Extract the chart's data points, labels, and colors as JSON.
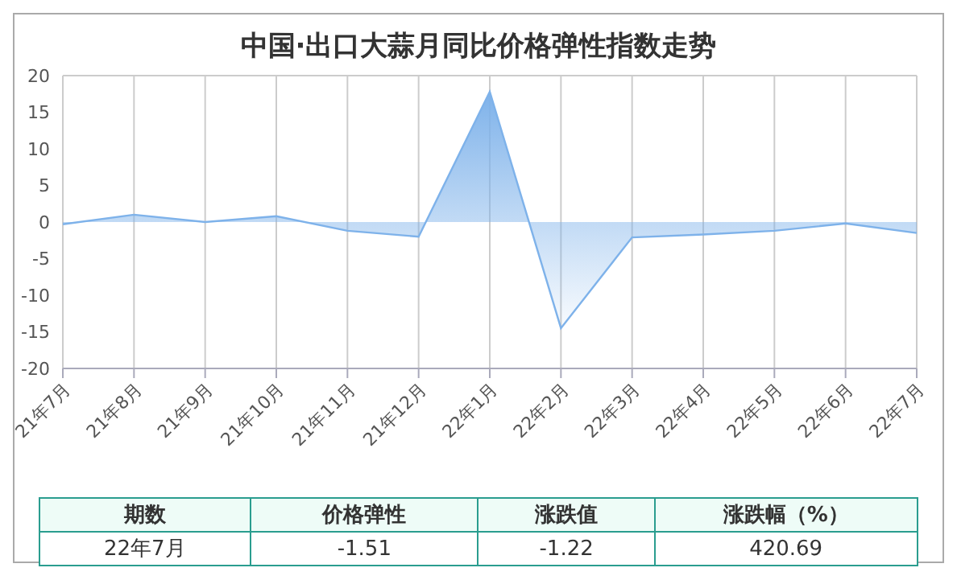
{
  "chart_data": {
    "type": "area",
    "title": "中国·出口大蒜月同比价格弹性指数走势",
    "categories": [
      "21年7月",
      "21年8月",
      "21年9月",
      "21年10月",
      "21年11月",
      "21年12月",
      "22年1月",
      "22年2月",
      "22年3月",
      "22年4月",
      "22年5月",
      "22年6月",
      "22年7月"
    ],
    "series": [
      {
        "color": "#7eb2ea",
        "values": [
          -0.3,
          1.0,
          0.0,
          0.8,
          -1.2,
          -2.0,
          17.8,
          -14.5,
          -2.1,
          -1.7,
          -1.2,
          -0.2,
          -1.5
        ]
      }
    ],
    "ylim": [
      -20,
      20
    ],
    "yticks": [
      -20,
      -15,
      -10,
      -5,
      0,
      5,
      10,
      15,
      20
    ],
    "grid": true,
    "legend": false,
    "annotations": [
      "期数",
      "价格弹性",
      "涨跌值",
      "涨跌幅（%）",
      "22年7月",
      "-1.51",
      "-1.22",
      "420.69"
    ]
  }
}
